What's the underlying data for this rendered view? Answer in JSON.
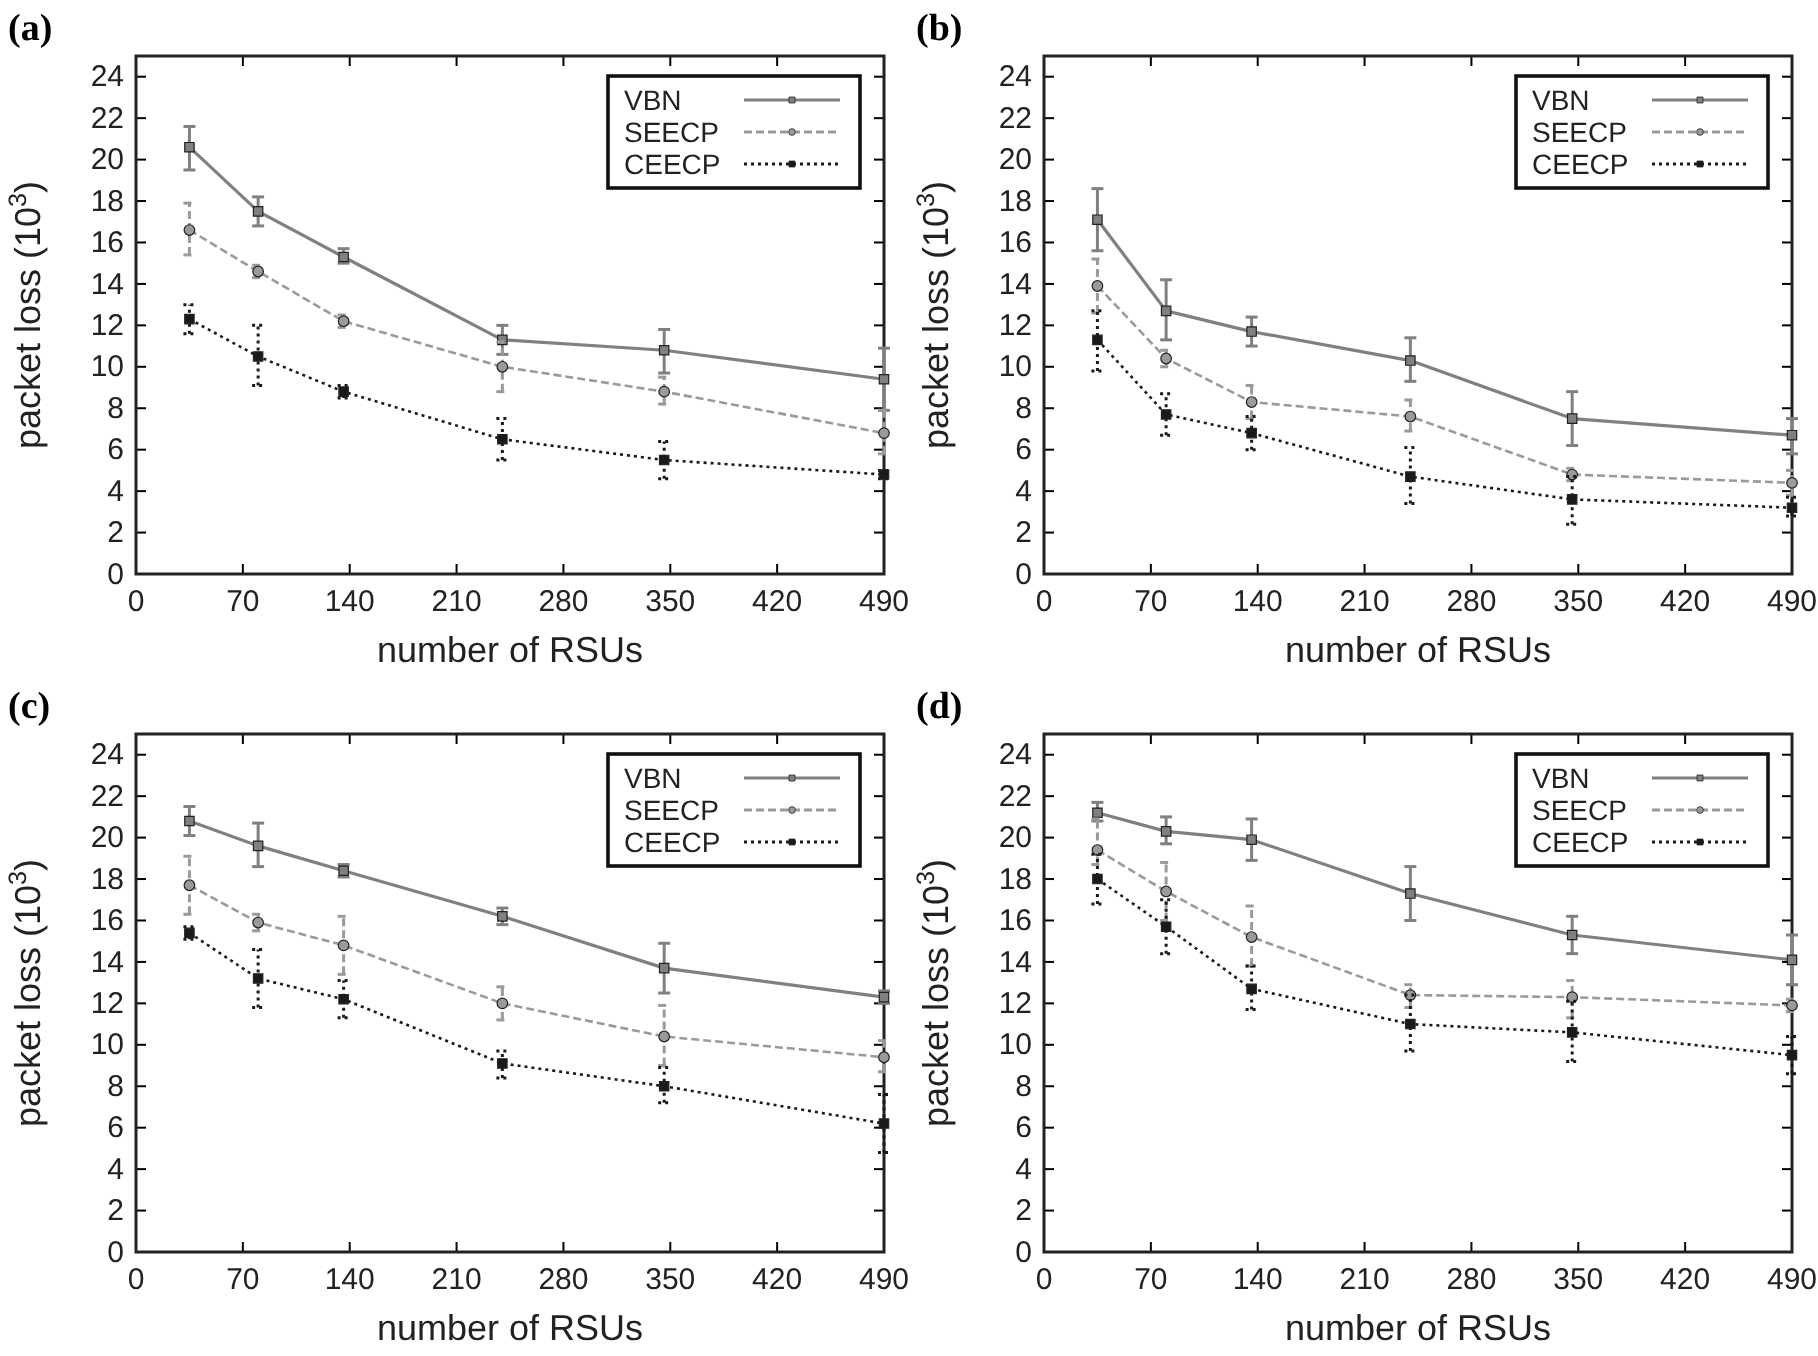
{
  "chart_data": [
    {
      "type": "line",
      "title": "(a)",
      "xlabel": "number of RSUs",
      "ylabel": "packet loss (10$^{3}$)",
      "xlim": [
        0,
        490
      ],
      "xticks": [
        0,
        70,
        140,
        210,
        280,
        350,
        420,
        490
      ],
      "ylim": [
        0,
        25
      ],
      "yticks": [
        0,
        2,
        4,
        6,
        8,
        10,
        12,
        14,
        16,
        18,
        20,
        22,
        24
      ],
      "grid": false,
      "legend": "top right",
      "x": [
        35,
        80,
        136,
        240,
        346,
        490
      ],
      "series": [
        {
          "name": "VBN",
          "color": "#808080",
          "marker": "square",
          "line_style": "solid",
          "values": [
            20.6,
            17.5,
            15.3,
            11.3,
            10.8,
            9.4
          ],
          "errors": [
            [
              19.5,
              21.6
            ],
            [
              16.8,
              18.2
            ],
            [
              15.0,
              15.7
            ],
            [
              10.6,
              12.0
            ],
            [
              9.7,
              11.8
            ],
            [
              7.9,
              10.9
            ]
          ]
        },
        {
          "name": "SEECP",
          "color": "#9a9a9a",
          "marker": "circle",
          "line_style": "dashed",
          "values": [
            16.6,
            14.6,
            12.2,
            10.0,
            8.8,
            6.8
          ],
          "errors": [
            [
              15.4,
              17.9
            ],
            [
              14.3,
              14.9
            ],
            [
              11.9,
              12.5
            ],
            [
              8.8,
              11.2
            ],
            [
              8.2,
              9.5
            ],
            [
              5.8,
              7.9
            ]
          ]
        },
        {
          "name": "CEECP",
          "color": "#1a1a1a",
          "marker": "square",
          "line_style": "dotted",
          "values": [
            12.3,
            10.5,
            8.8,
            6.5,
            5.5,
            4.8
          ],
          "errors": [
            [
              11.6,
              13.0
            ],
            [
              9.1,
              12.0
            ],
            [
              8.5,
              9.1
            ],
            [
              5.5,
              7.5
            ],
            [
              4.6,
              6.4
            ],
            [
              4.6,
              5.0
            ]
          ]
        }
      ]
    },
    {
      "type": "line",
      "title": "(b)",
      "xlabel": "number of RSUs",
      "ylabel": "packet loss (10$^{3}$)",
      "xlim": [
        0,
        490
      ],
      "xticks": [
        0,
        70,
        140,
        210,
        280,
        350,
        420,
        490
      ],
      "ylim": [
        0,
        25
      ],
      "yticks": [
        0,
        2,
        4,
        6,
        8,
        10,
        12,
        14,
        16,
        18,
        20,
        22,
        24
      ],
      "grid": false,
      "legend": "top right",
      "x": [
        35,
        80,
        136,
        240,
        346,
        490
      ],
      "series": [
        {
          "name": "VBN",
          "color": "#808080",
          "marker": "square",
          "line_style": "solid",
          "values": [
            17.1,
            12.7,
            11.7,
            10.3,
            7.5,
            6.7
          ],
          "errors": [
            [
              15.6,
              18.6
            ],
            [
              11.3,
              14.2
            ],
            [
              11.0,
              12.4
            ],
            [
              9.3,
              11.4
            ],
            [
              6.2,
              8.8
            ],
            [
              5.8,
              7.5
            ]
          ]
        },
        {
          "name": "SEECP",
          "color": "#9a9a9a",
          "marker": "circle",
          "line_style": "dashed",
          "values": [
            13.9,
            10.4,
            8.3,
            7.6,
            4.8,
            4.4
          ],
          "errors": [
            [
              12.6,
              15.2
            ],
            [
              10.0,
              10.8
            ],
            [
              7.5,
              9.1
            ],
            [
              6.9,
              8.4
            ],
            [
              4.5,
              5.1
            ],
            [
              3.8,
              5.0
            ]
          ]
        },
        {
          "name": "CEECP",
          "color": "#1a1a1a",
          "marker": "square",
          "line_style": "dotted",
          "values": [
            11.3,
            7.7,
            6.8,
            4.7,
            3.6,
            3.2
          ],
          "errors": [
            [
              9.8,
              12.7
            ],
            [
              6.7,
              8.7
            ],
            [
              6.0,
              7.6
            ],
            [
              3.4,
              6.1
            ],
            [
              2.4,
              4.7
            ],
            [
              2.8,
              3.7
            ]
          ]
        }
      ]
    },
    {
      "type": "line",
      "title": "(c)",
      "xlabel": "number of RSUs",
      "ylabel": "packet loss (10$^{3}$)",
      "xlim": [
        0,
        490
      ],
      "xticks": [
        0,
        70,
        140,
        210,
        280,
        350,
        420,
        490
      ],
      "ylim": [
        0,
        25
      ],
      "yticks": [
        0,
        2,
        4,
        6,
        8,
        10,
        12,
        14,
        16,
        18,
        20,
        22,
        24
      ],
      "grid": false,
      "legend": "top right",
      "x": [
        35,
        80,
        136,
        240,
        346,
        490
      ],
      "series": [
        {
          "name": "VBN",
          "color": "#808080",
          "marker": "square",
          "line_style": "solid",
          "values": [
            20.8,
            19.6,
            18.4,
            16.2,
            13.7,
            12.3
          ],
          "errors": [
            [
              20.1,
              21.5
            ],
            [
              18.6,
              20.7
            ],
            [
              18.1,
              18.7
            ],
            [
              15.8,
              16.6
            ],
            [
              12.5,
              14.9
            ],
            [
              12.0,
              12.6
            ]
          ]
        },
        {
          "name": "SEECP",
          "color": "#9a9a9a",
          "marker": "circle",
          "line_style": "dashed",
          "values": [
            17.7,
            15.9,
            14.8,
            12.0,
            10.4,
            9.4
          ],
          "errors": [
            [
              16.3,
              19.1
            ],
            [
              15.5,
              16.3
            ],
            [
              13.4,
              16.2
            ],
            [
              11.2,
              12.8
            ],
            [
              9.0,
              11.9
            ],
            [
              8.7,
              10.2
            ]
          ]
        },
        {
          "name": "CEECP",
          "color": "#1a1a1a",
          "marker": "square",
          "line_style": "dotted",
          "values": [
            15.4,
            13.2,
            12.2,
            9.1,
            8.0,
            6.2
          ],
          "errors": [
            [
              15.1,
              15.7
            ],
            [
              11.8,
              14.6
            ],
            [
              11.3,
              13.1
            ],
            [
              8.4,
              9.7
            ],
            [
              7.2,
              8.9
            ],
            [
              4.8,
              7.6
            ]
          ]
        }
      ]
    },
    {
      "type": "line",
      "title": "(d)",
      "xlabel": "number of RSUs",
      "ylabel": "packet loss (10$^{3}$)",
      "xlim": [
        0,
        490
      ],
      "xticks": [
        0,
        70,
        140,
        210,
        280,
        350,
        420,
        490
      ],
      "ylim": [
        0,
        25
      ],
      "yticks": [
        0,
        2,
        4,
        6,
        8,
        10,
        12,
        14,
        16,
        18,
        20,
        22,
        24
      ],
      "grid": false,
      "legend": "top right",
      "x": [
        35,
        80,
        136,
        240,
        346,
        490
      ],
      "series": [
        {
          "name": "VBN",
          "color": "#808080",
          "marker": "square",
          "line_style": "solid",
          "values": [
            21.2,
            20.3,
            19.9,
            17.3,
            15.3,
            14.1
          ],
          "errors": [
            [
              20.8,
              21.7
            ],
            [
              19.7,
              21.0
            ],
            [
              18.9,
              20.9
            ],
            [
              16.0,
              18.6
            ],
            [
              14.4,
              16.2
            ],
            [
              12.9,
              15.3
            ]
          ]
        },
        {
          "name": "SEECP",
          "color": "#9a9a9a",
          "marker": "circle",
          "line_style": "dashed",
          "values": [
            19.4,
            17.4,
            15.2,
            12.4,
            12.3,
            11.9
          ],
          "errors": [
            [
              18.7,
              20.9
            ],
            [
              16.0,
              18.8
            ],
            [
              13.8,
              16.7
            ],
            [
              11.8,
              12.9
            ],
            [
              11.3,
              13.1
            ],
            [
              11.6,
              12.2
            ]
          ]
        },
        {
          "name": "CEECP",
          "color": "#1a1a1a",
          "marker": "square",
          "line_style": "dotted",
          "values": [
            18.0,
            15.7,
            12.7,
            11.0,
            10.6,
            9.5
          ],
          "errors": [
            [
              16.8,
              19.2
            ],
            [
              14.4,
              17.0
            ],
            [
              11.7,
              13.8
            ],
            [
              9.7,
              12.4
            ],
            [
              9.2,
              12.1
            ],
            [
              8.6,
              10.4
            ]
          ]
        }
      ]
    }
  ]
}
